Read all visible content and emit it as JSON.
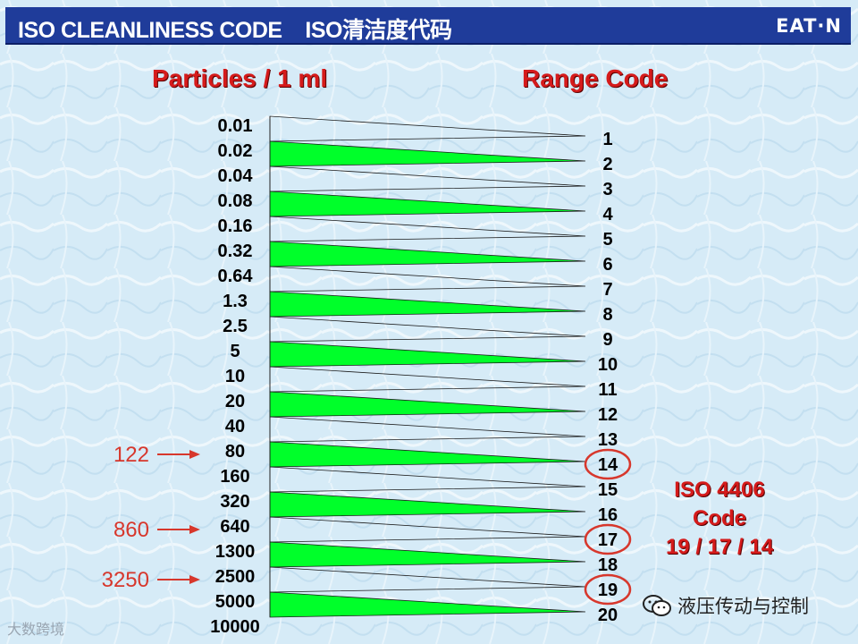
{
  "header": {
    "title": "ISO CLEANLINESS CODE    ISO清洁度代码",
    "logo": "EAT·N"
  },
  "columns": {
    "left_heading": "Particles / 1 ml",
    "right_heading": "Range Code"
  },
  "particles": [
    "0.01",
    "0.02",
    "0.04",
    "0.08",
    "0.16",
    "0.32",
    "0.64",
    "1.3",
    "2.5",
    "5",
    "10",
    "20",
    "40",
    "80",
    "160",
    "320",
    "640",
    "1300",
    "2500",
    "5000",
    "10000"
  ],
  "range_codes": [
    "1",
    "2",
    "3",
    "4",
    "5",
    "6",
    "7",
    "8",
    "9",
    "10",
    "11",
    "12",
    "13",
    "14",
    "15",
    "16",
    "17",
    "18",
    "19",
    "20"
  ],
  "markers": [
    {
      "value": "122",
      "particle_index": 13
    },
    {
      "value": "860",
      "particle_index": 16
    },
    {
      "value": "3250",
      "particle_index": 18
    }
  ],
  "circled_codes": [
    "14",
    "17",
    "19"
  ],
  "iso_result": {
    "line1": "ISO 4406",
    "line2": "Code",
    "line3": "19 / 17 / 14"
  },
  "watermarks": {
    "left": "大数跨境",
    "right": "液压传动与控制"
  },
  "colors": {
    "header_bg": "#1f3c9a",
    "wedge_fill": "#00ff2a",
    "heading_red": "#d51b1b",
    "marker_red": "#d7372c",
    "background": "#d9ecf7"
  }
}
